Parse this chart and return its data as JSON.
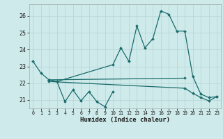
{
  "title": "",
  "xlabel": "Humidex (Indice chaleur)",
  "ylabel": "",
  "bg_color": "#ceeaea",
  "grid_color": "#b8d8d8",
  "line_color": "#1a6b6b",
  "xlim": [
    -0.5,
    23.5
  ],
  "ylim": [
    20.5,
    26.7
  ],
  "yticks": [
    21,
    22,
    23,
    24,
    25,
    26
  ],
  "xticks": [
    0,
    1,
    2,
    3,
    4,
    5,
    6,
    7,
    8,
    9,
    10,
    11,
    12,
    13,
    14,
    15,
    16,
    17,
    18,
    19,
    20,
    21,
    22,
    23
  ],
  "series": [
    {
      "x": [
        0,
        1,
        2,
        3,
        4,
        5,
        6,
        7,
        8,
        9,
        10
      ],
      "y": [
        23.3,
        22.6,
        22.2,
        22.1,
        20.9,
        21.6,
        20.95,
        21.5,
        20.9,
        20.6,
        21.5
      ]
    },
    {
      "x": [
        2,
        3,
        10,
        11,
        12,
        13,
        14,
        15,
        16,
        17,
        18,
        19,
        20,
        21,
        22,
        23
      ],
      "y": [
        22.2,
        22.1,
        23.1,
        24.1,
        23.3,
        25.4,
        24.1,
        24.65,
        26.3,
        26.1,
        25.1,
        25.1,
        22.4,
        21.35,
        21.15,
        21.2
      ]
    },
    {
      "x": [
        2,
        19
      ],
      "y": [
        22.2,
        22.3
      ]
    },
    {
      "x": [
        2,
        19,
        20,
        21,
        22,
        23
      ],
      "y": [
        22.1,
        21.7,
        21.4,
        21.15,
        20.95,
        21.2
      ]
    }
  ]
}
